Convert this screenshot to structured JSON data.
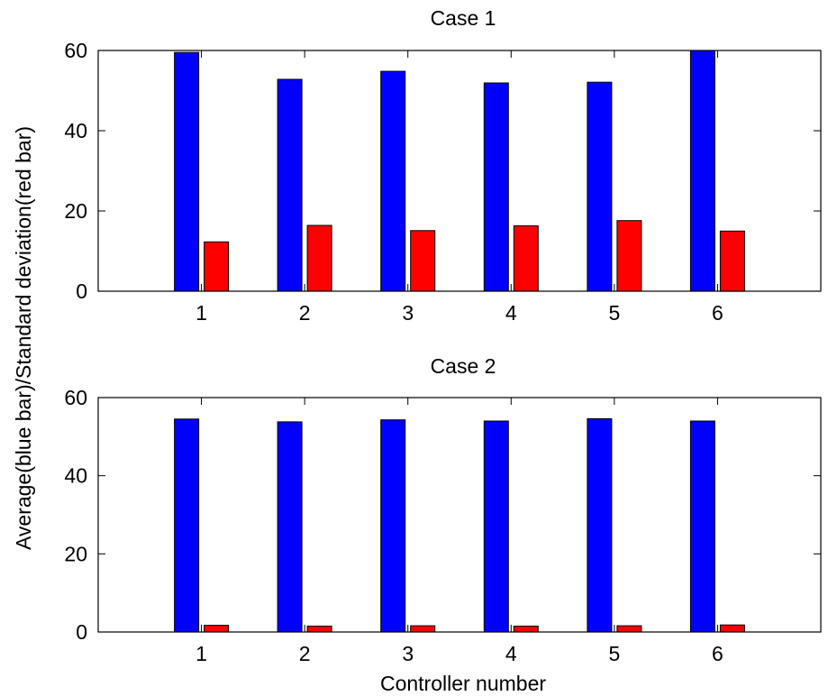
{
  "ylabel": "Average(blue bar)/Standard deviation(red bar)",
  "xlabel": "Controller number",
  "colors": {
    "average": "#0000ff",
    "std": "#ff0000"
  },
  "chart_data": [
    {
      "type": "bar",
      "title": "Case 1",
      "categories": [
        "1",
        "2",
        "3",
        "4",
        "5",
        "6"
      ],
      "series": [
        {
          "values": [
            59.5,
            52.8,
            54.8,
            51.9,
            52.1,
            60
          ]
        },
        {
          "values": [
            12.3,
            16.4,
            15.1,
            16.3,
            17.6,
            15.0
          ]
        }
      ],
      "xlim": [
        0,
        7
      ],
      "ylim": [
        0,
        60
      ],
      "yticks": [
        "0",
        "20",
        "40",
        "60"
      ]
    },
    {
      "type": "bar",
      "title": "Case 2",
      "categories": [
        "1",
        "2",
        "3",
        "4",
        "5",
        "6"
      ],
      "series": [
        {
          "values": [
            54.5,
            53.8,
            54.3,
            54.0,
            54.6,
            54.0
          ]
        },
        {
          "values": [
            1.7,
            1.5,
            1.6,
            1.5,
            1.6,
            1.8
          ]
        }
      ],
      "xlim": [
        0,
        7
      ],
      "ylim": [
        0,
        60
      ],
      "yticks": [
        "0",
        "20",
        "40",
        "60"
      ]
    }
  ]
}
